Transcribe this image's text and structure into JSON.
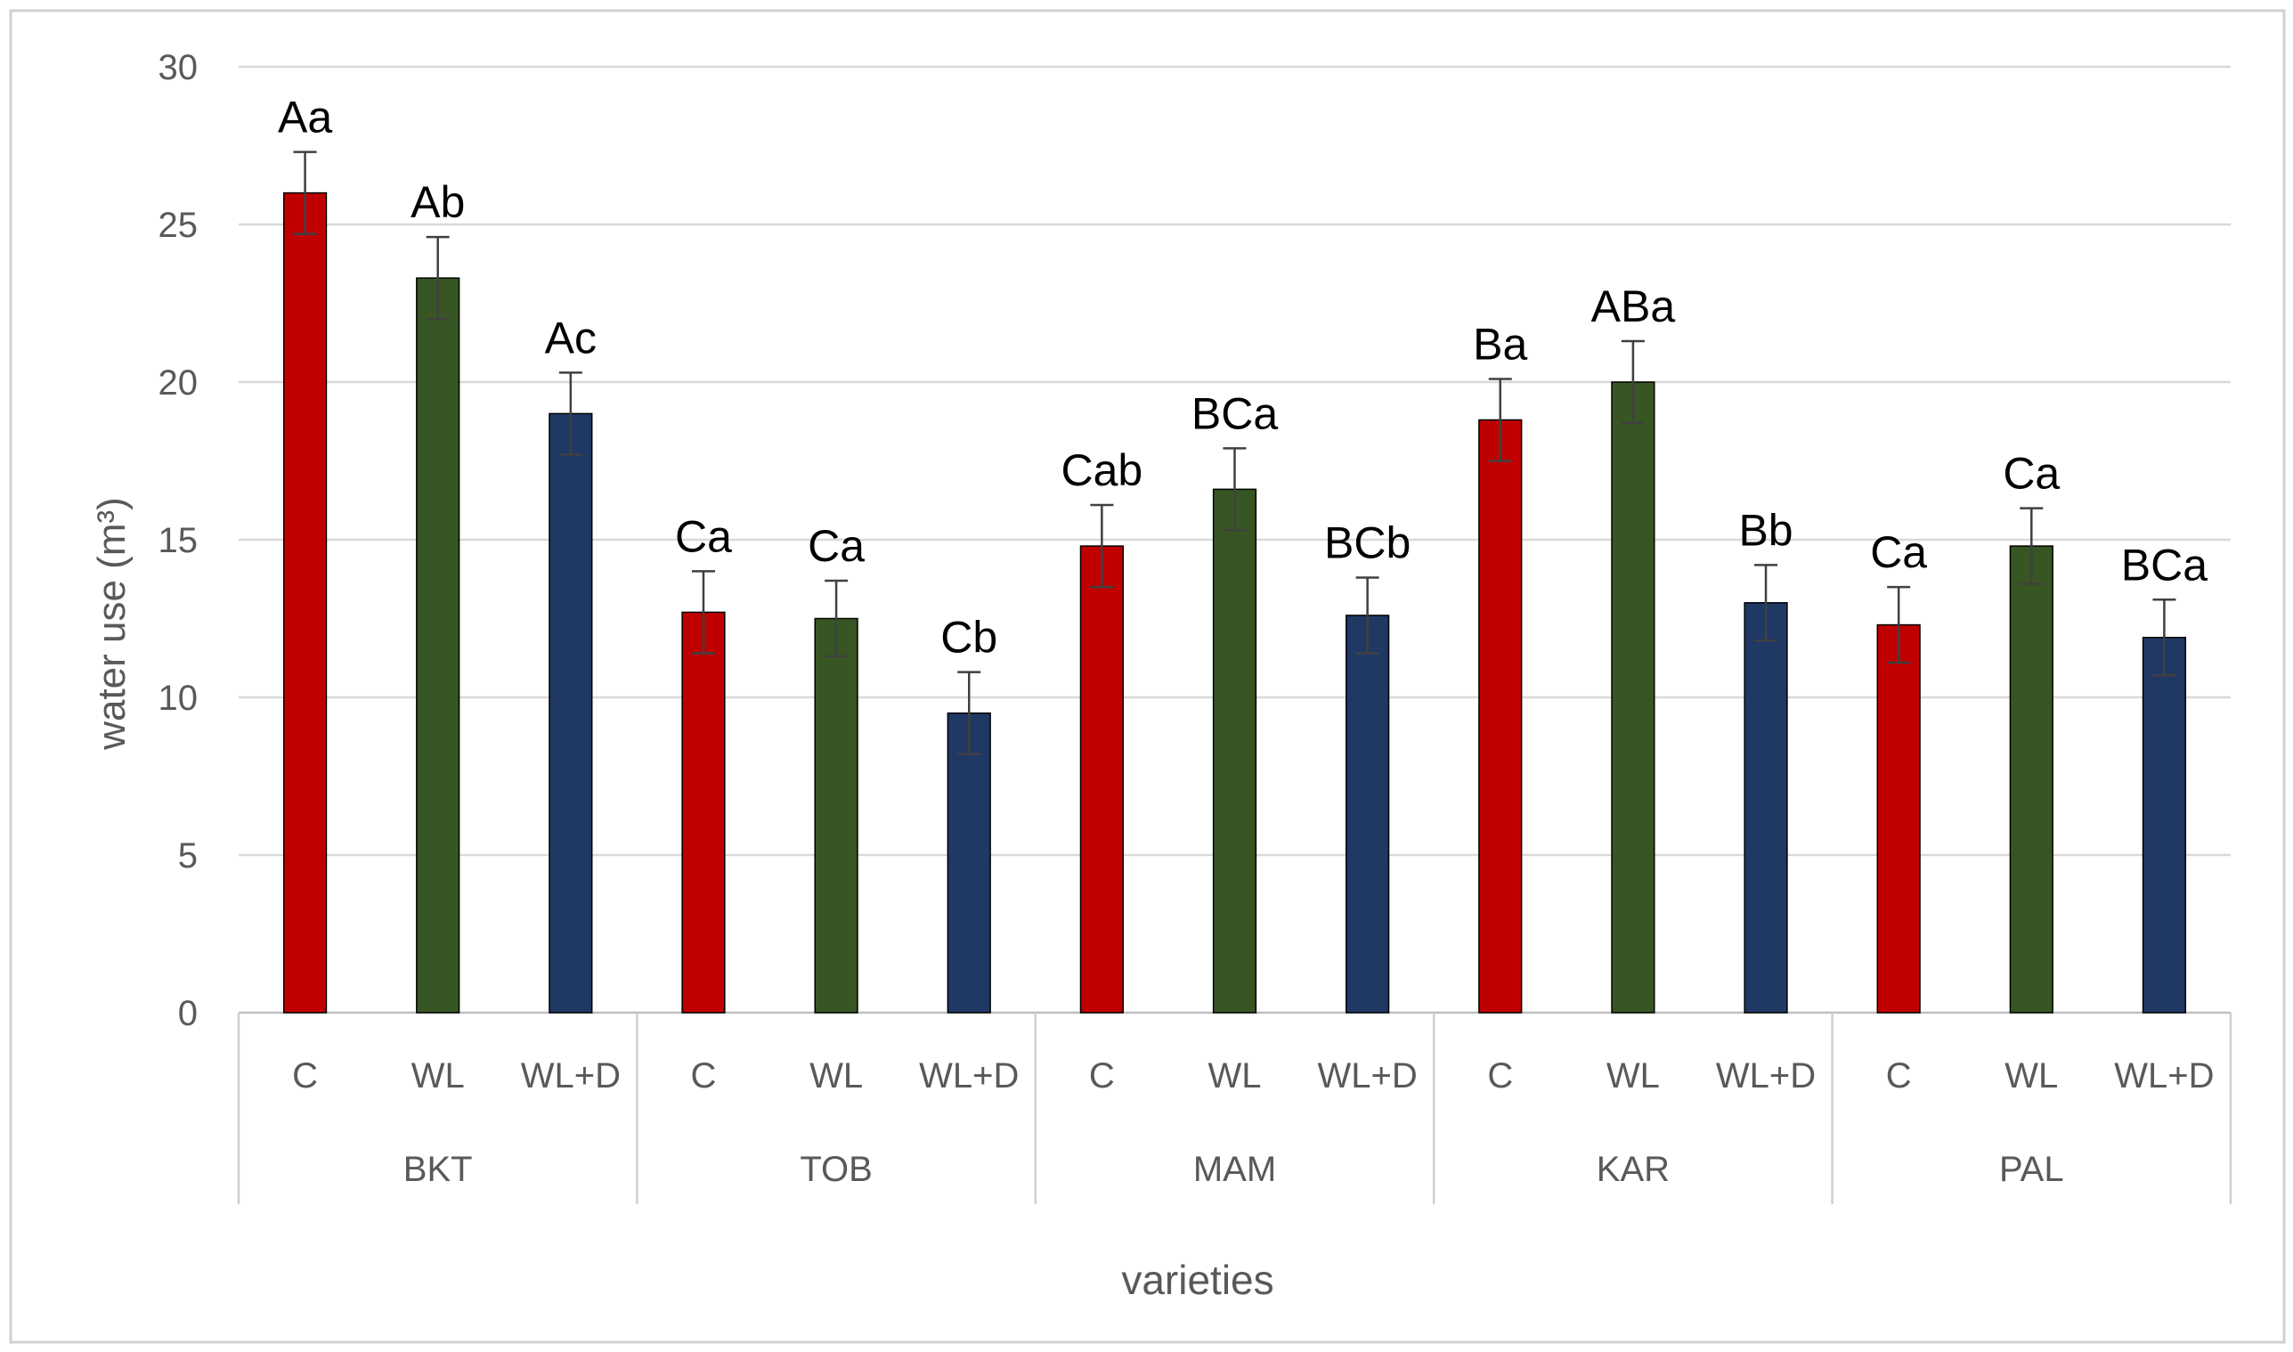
{
  "chart_data": {
    "type": "bar",
    "title": "",
    "xlabel": "varieties",
    "ylabel": "water use (m³)",
    "ylim": [
      0,
      30
    ],
    "yticks": [
      0,
      5,
      10,
      15,
      20,
      25,
      30
    ],
    "grid": true,
    "legend": "none",
    "groups": [
      {
        "name": "BKT",
        "bars": [
          {
            "treatment": "C",
            "value": 26.0,
            "error": 1.3,
            "label": "Aa",
            "color": "#C00000"
          },
          {
            "treatment": "WL",
            "value": 23.3,
            "error": 1.3,
            "label": "Ab",
            "color": "#375623"
          },
          {
            "treatment": "WL+D",
            "value": 19.0,
            "error": 1.3,
            "label": "Ac",
            "color": "#203864"
          }
        ]
      },
      {
        "name": "TOB",
        "bars": [
          {
            "treatment": "C",
            "value": 12.7,
            "error": 1.3,
            "label": "Ca",
            "color": "#C00000"
          },
          {
            "treatment": "WL",
            "value": 12.5,
            "error": 1.2,
            "label": "Ca",
            "color": "#375623"
          },
          {
            "treatment": "WL+D",
            "value": 9.5,
            "error": 1.3,
            "label": "Cb",
            "color": "#203864"
          }
        ]
      },
      {
        "name": "MAM",
        "bars": [
          {
            "treatment": "C",
            "value": 14.8,
            "error": 1.3,
            "label": "Cab",
            "color": "#C00000"
          },
          {
            "treatment": "WL",
            "value": 16.6,
            "error": 1.3,
            "label": "BCa",
            "color": "#375623"
          },
          {
            "treatment": "WL+D",
            "value": 12.6,
            "error": 1.2,
            "label": "BCb",
            "color": "#203864"
          }
        ]
      },
      {
        "name": "KAR",
        "bars": [
          {
            "treatment": "C",
            "value": 18.8,
            "error": 1.3,
            "label": "Ba",
            "color": "#C00000"
          },
          {
            "treatment": "WL",
            "value": 20.0,
            "error": 1.3,
            "label": "ABa",
            "color": "#375623"
          },
          {
            "treatment": "WL+D",
            "value": 13.0,
            "error": 1.2,
            "label": "Bb",
            "color": "#203864"
          }
        ]
      },
      {
        "name": "PAL",
        "bars": [
          {
            "treatment": "C",
            "value": 12.3,
            "error": 1.2,
            "label": "Ca",
            "color": "#C00000"
          },
          {
            "treatment": "WL",
            "value": 14.8,
            "error": 1.2,
            "label": "Ca",
            "color": "#375623"
          },
          {
            "treatment": "WL+D",
            "value": 11.9,
            "error": 1.2,
            "label": "BCa",
            "color": "#203864"
          }
        ]
      }
    ]
  }
}
